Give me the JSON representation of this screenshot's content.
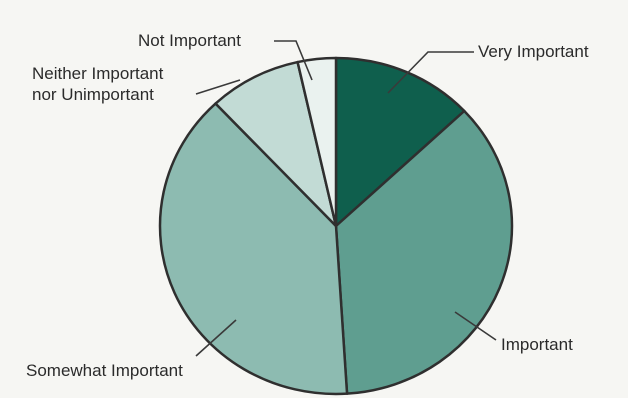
{
  "chart_data": {
    "type": "pie",
    "slices": [
      {
        "label": "Very Important",
        "value": 13,
        "color": "#0f5f4d"
      },
      {
        "label": "Important",
        "value": 36,
        "color": "#5f9e90"
      },
      {
        "label": "Somewhat Important",
        "value": 39,
        "color": "#8dbbb1"
      },
      {
        "label": "Neither Important nor Unimportant",
        "label_lines": [
          "Neither Important",
          "nor Unimportant"
        ],
        "value": 8.5,
        "color": "#c2dbd5"
      },
      {
        "label": "Not Important",
        "value": 3.5,
        "color": "#eaf2ef"
      }
    ],
    "start_angle_deg": 0,
    "direction": "clockwise",
    "slice_border_color": "#2f2f2f",
    "legend": "none"
  }
}
